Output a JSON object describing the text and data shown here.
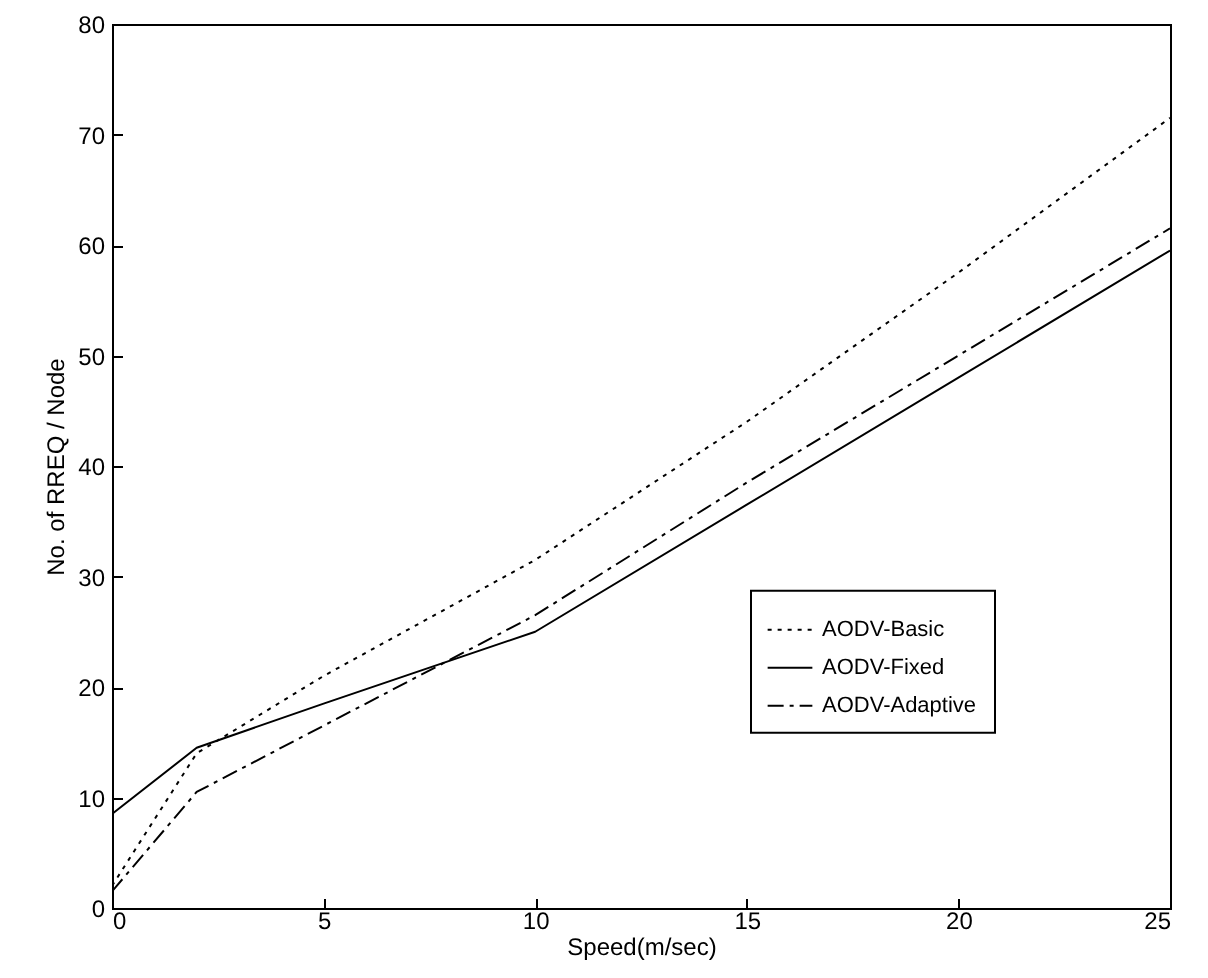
{
  "chart_data": {
    "type": "line",
    "xlabel": "Speed(m/sec)",
    "ylabel": "No. of RREQ / Node",
    "x": [
      0,
      2,
      5,
      10,
      15,
      20,
      25
    ],
    "series": [
      {
        "name": "AODV-Basic",
        "color": "#000000",
        "line_style": "dotted",
        "values": [
          2,
          14,
          21,
          31.5,
          44,
          57.5,
          71.5
        ]
      },
      {
        "name": "AODV-Fixed",
        "color": "#000000",
        "line_style": "solid",
        "values": [
          8.5,
          14.5,
          18.5,
          25,
          36.5,
          48,
          59.5
        ]
      },
      {
        "name": "AODV-Adaptive",
        "color": "#000000",
        "line_style": "dashdot",
        "values": [
          1.5,
          10.5,
          16.5,
          26.5,
          38.5,
          50,
          61.5
        ]
      }
    ],
    "xlim": [
      0,
      25
    ],
    "xticks": [
      0,
      5,
      10,
      15,
      20,
      25
    ],
    "ylim": [
      0,
      80
    ],
    "yticks": [
      0,
      10,
      20,
      30,
      40,
      50,
      60,
      70,
      80
    ],
    "grid": false,
    "legend": "right"
  }
}
